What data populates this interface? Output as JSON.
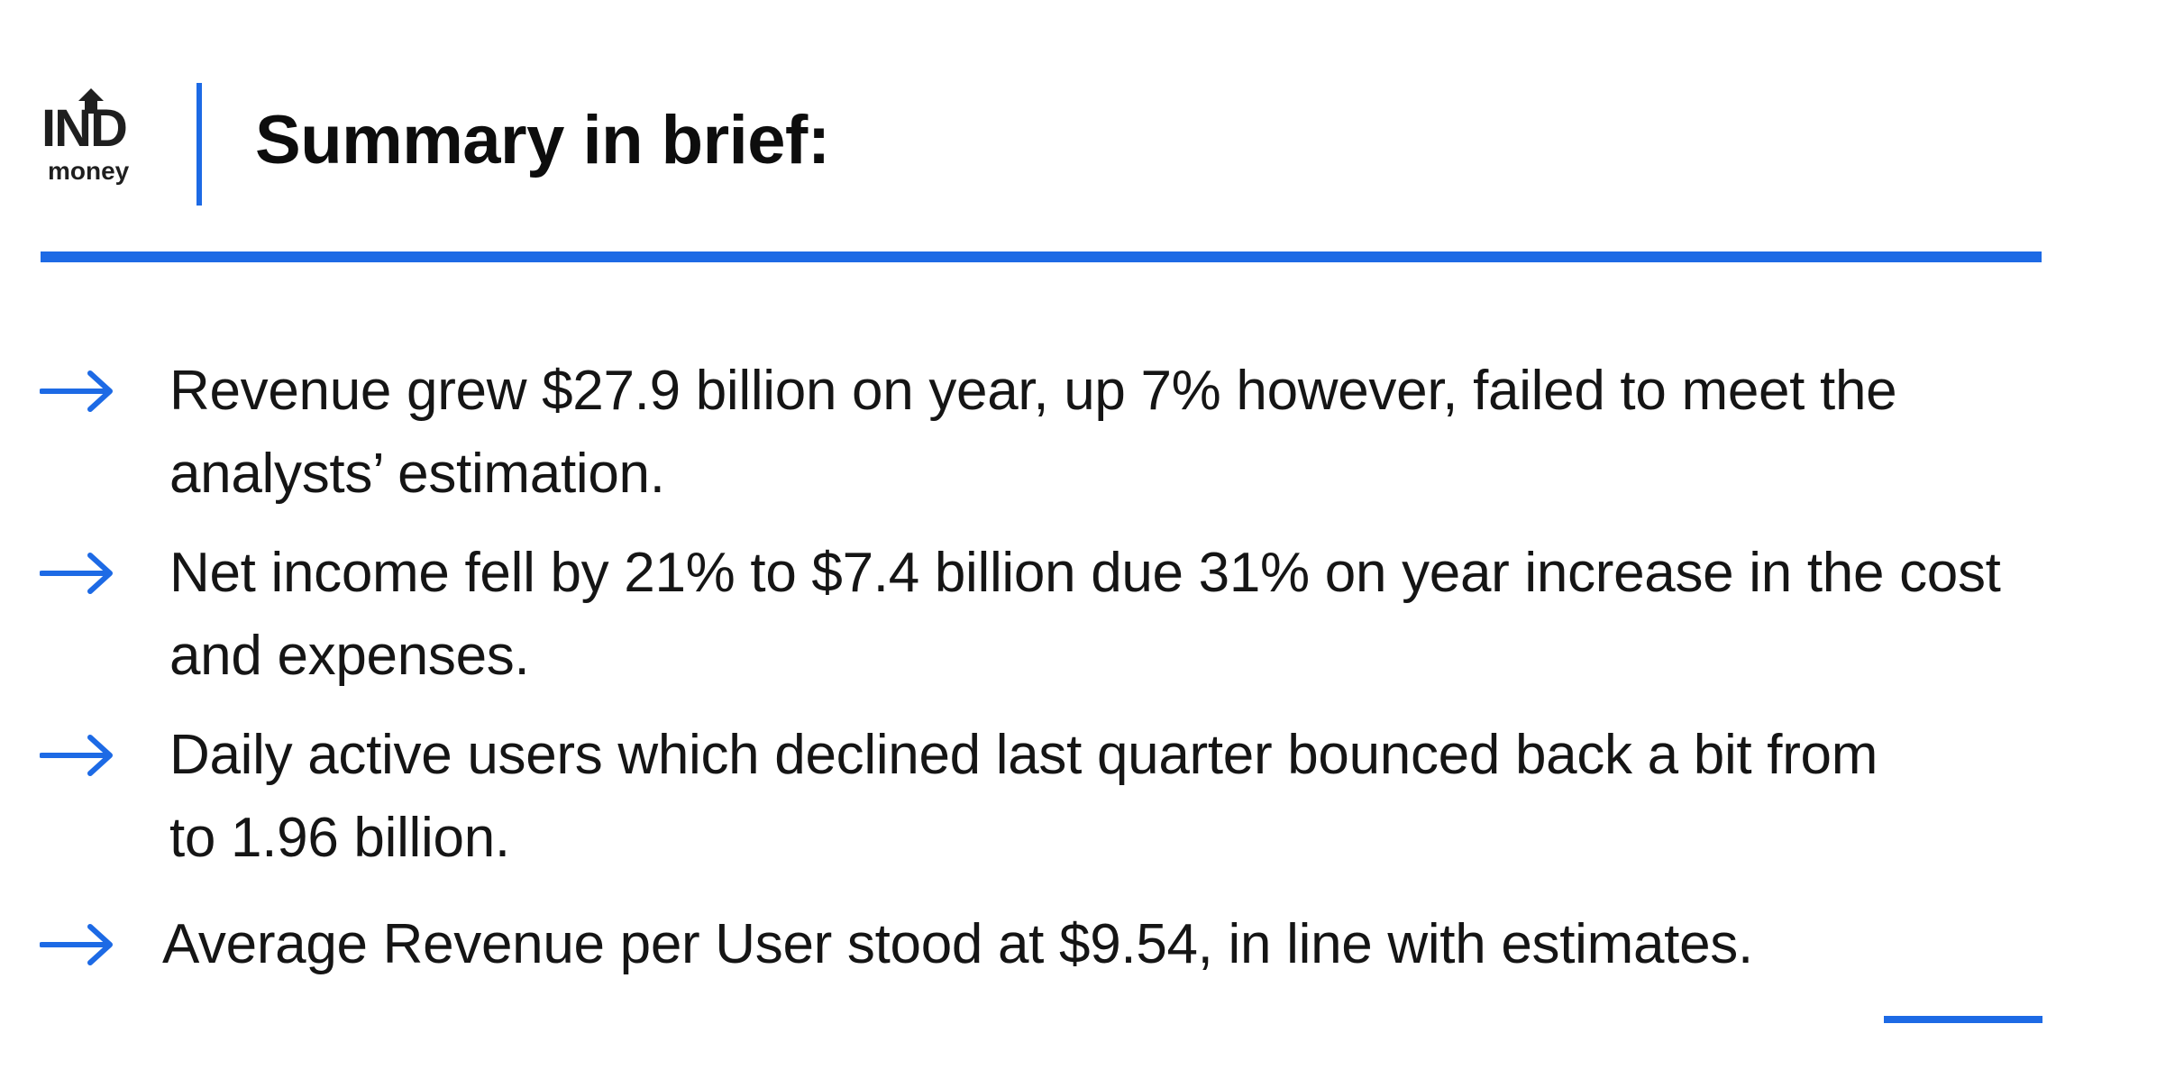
{
  "logo": {
    "main_text": "IND",
    "sub_text": "money"
  },
  "header": {
    "title": "Summary in brief:"
  },
  "bullets": [
    {
      "text": "Revenue grew $27.9 billion on year, up 7% however, failed to meet the analysts’ estimation."
    },
    {
      "text": "Net income fell by 21% to $7.4 billion due 31% on year increase in the cost and expenses."
    },
    {
      "text": "Daily active users which declined last quarter bounced back a bit from to 1.96 billion."
    },
    {
      "text": "Average Revenue per User stood at $9.54, in line with estimates."
    }
  ],
  "icons": {
    "bullet": "arrow-right-icon",
    "logo": "indmoney-logo"
  },
  "colors": {
    "accent": "#1d6ae5",
    "text": "#151515",
    "background": "#ffffff"
  }
}
